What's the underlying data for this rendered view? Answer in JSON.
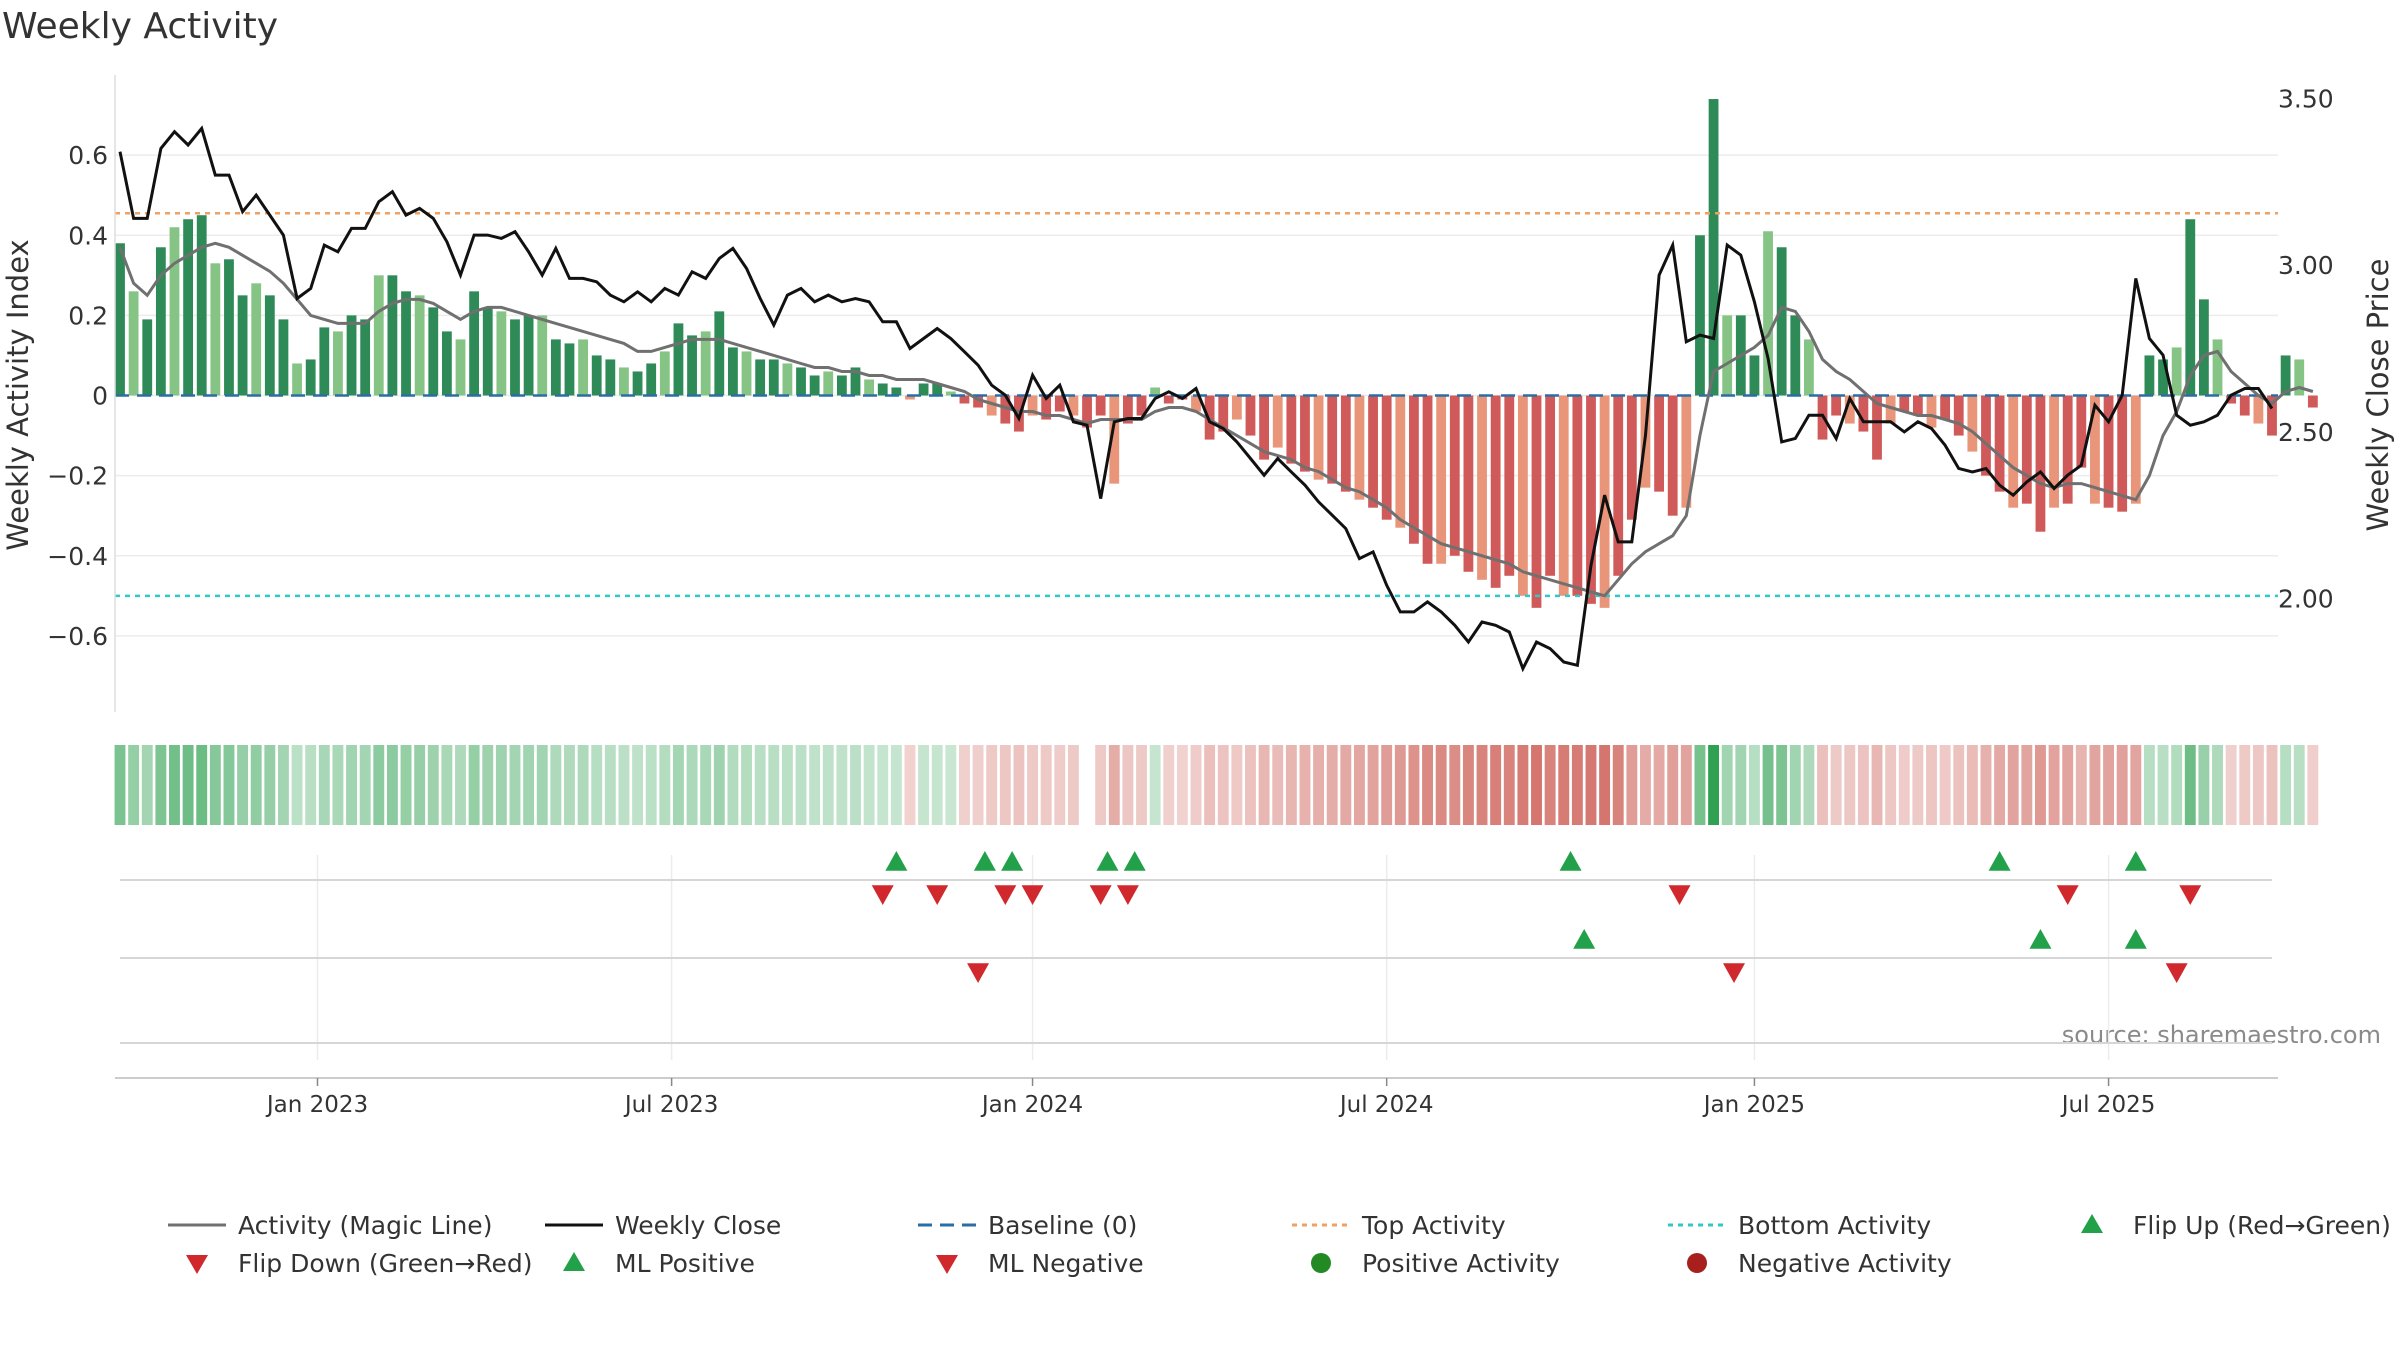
{
  "chart_data": {
    "type": "bar+line",
    "title": "Weekly Activity",
    "ylabel_left": "Weekly Activity Index",
    "ylabel_right": "Weekly Close Price",
    "source": "source: sharemaestro.com",
    "ylim_left": [
      -0.79,
      0.8
    ],
    "yticks_left": [
      "0.6",
      "0.4",
      "0.2",
      "0",
      "−0.2",
      "−0.4",
      "−0.6"
    ],
    "ytick_values_left": [
      0.6,
      0.4,
      0.2,
      0,
      -0.2,
      -0.4,
      -0.6
    ],
    "ylim_right": [
      1.66,
      3.57
    ],
    "yticks_right": [
      "3.50",
      "3.00",
      "2.50",
      "2.00"
    ],
    "ytick_values_right": [
      3.5,
      3.0,
      2.5,
      2.0
    ],
    "x_week_range": [
      0,
      158
    ],
    "x_ticks": [
      {
        "label": "Jan 2023",
        "week": 14.5
      },
      {
        "label": "Jul 2023",
        "week": 40.5
      },
      {
        "label": "Jan 2024",
        "week": 67
      },
      {
        "label": "Jul 2024",
        "week": 93
      },
      {
        "label": "Jan 2025",
        "week": 120
      },
      {
        "label": "Jul 2025",
        "week": 146
      }
    ],
    "top_activity": 0.455,
    "bottom_activity": -0.5,
    "activity": [
      0.38,
      0.26,
      0.19,
      0.37,
      0.42,
      0.44,
      0.45,
      0.33,
      0.34,
      0.25,
      0.28,
      0.25,
      0.19,
      0.08,
      0.09,
      0.17,
      0.16,
      0.2,
      0.19,
      0.3,
      0.3,
      0.26,
      0.25,
      0.22,
      0.16,
      0.14,
      0.26,
      0.22,
      0.21,
      0.19,
      0.2,
      0.2,
      0.14,
      0.13,
      0.14,
      0.1,
      0.09,
      0.07,
      0.06,
      0.08,
      0.11,
      0.18,
      0.15,
      0.16,
      0.21,
      0.12,
      0.11,
      0.09,
      0.09,
      0.08,
      0.07,
      0.05,
      0.06,
      0.05,
      0.07,
      0.04,
      0.03,
      0.02,
      -0.01,
      0.03,
      0.03,
      0.01,
      -0.02,
      -0.03,
      -0.05,
      -0.07,
      -0.09,
      -0.05,
      -0.06,
      -0.04,
      -0.05,
      -0.08,
      -0.05,
      -0.22,
      -0.07,
      -0.05,
      0.02,
      -0.02,
      -0.01,
      -0.04,
      -0.11,
      -0.09,
      -0.06,
      -0.1,
      -0.16,
      -0.13,
      -0.17,
      -0.19,
      -0.21,
      -0.22,
      -0.24,
      -0.26,
      -0.28,
      -0.31,
      -0.33,
      -0.37,
      -0.42,
      -0.42,
      -0.4,
      -0.44,
      -0.46,
      -0.48,
      -0.45,
      -0.5,
      -0.53,
      -0.45,
      -0.5,
      -0.5,
      -0.52,
      -0.53,
      -0.45,
      -0.31,
      -0.23,
      -0.24,
      -0.3,
      -0.28,
      0.4,
      0.74,
      0.2,
      0.2,
      0.1,
      0.41,
      0.37,
      0.2,
      0.14,
      -0.11,
      -0.05,
      -0.07,
      -0.09,
      -0.16,
      -0.07,
      -0.04,
      -0.05,
      -0.08,
      -0.06,
      -0.1,
      -0.14,
      -0.2,
      -0.24,
      -0.28,
      -0.27,
      -0.34,
      -0.28,
      -0.27,
      -0.18,
      -0.27,
      -0.28,
      -0.29,
      -0.27,
      0.1,
      0.09,
      0.12,
      0.44,
      0.24,
      0.14,
      -0.02,
      -0.05,
      -0.07,
      -0.1,
      0.1,
      0.09,
      -0.03
    ],
    "magic_line": [
      0.37,
      0.28,
      0.25,
      0.3,
      0.33,
      0.35,
      0.37,
      0.38,
      0.37,
      0.35,
      0.33,
      0.31,
      0.28,
      0.24,
      0.2,
      0.19,
      0.18,
      0.18,
      0.18,
      0.21,
      0.23,
      0.24,
      0.24,
      0.23,
      0.21,
      0.19,
      0.21,
      0.22,
      0.22,
      0.21,
      0.2,
      0.19,
      0.18,
      0.17,
      0.16,
      0.15,
      0.14,
      0.13,
      0.11,
      0.11,
      0.12,
      0.13,
      0.14,
      0.14,
      0.14,
      0.13,
      0.12,
      0.11,
      0.1,
      0.09,
      0.08,
      0.07,
      0.07,
      0.06,
      0.06,
      0.05,
      0.05,
      0.04,
      0.04,
      0.04,
      0.03,
      0.02,
      0.01,
      -0.01,
      -0.02,
      -0.03,
      -0.04,
      -0.04,
      -0.05,
      -0.05,
      -0.06,
      -0.07,
      -0.06,
      -0.06,
      -0.06,
      -0.06,
      -0.04,
      -0.03,
      -0.03,
      -0.04,
      -0.06,
      -0.08,
      -0.1,
      -0.12,
      -0.14,
      -0.15,
      -0.16,
      -0.18,
      -0.19,
      -0.21,
      -0.23,
      -0.24,
      -0.26,
      -0.28,
      -0.31,
      -0.33,
      -0.35,
      -0.37,
      -0.38,
      -0.39,
      -0.4,
      -0.41,
      -0.42,
      -0.44,
      -0.45,
      -0.46,
      -0.47,
      -0.48,
      -0.49,
      -0.5,
      -0.46,
      -0.42,
      -0.39,
      -0.37,
      -0.35,
      -0.3,
      -0.1,
      0.06,
      0.08,
      0.1,
      0.12,
      0.15,
      0.22,
      0.21,
      0.16,
      0.09,
      0.06,
      0.04,
      0.01,
      -0.02,
      -0.03,
      -0.04,
      -0.05,
      -0.05,
      -0.06,
      -0.07,
      -0.09,
      -0.12,
      -0.15,
      -0.18,
      -0.2,
      -0.22,
      -0.23,
      -0.22,
      -0.22,
      -0.23,
      -0.24,
      -0.25,
      -0.26,
      -0.2,
      -0.1,
      -0.04,
      0.05,
      0.1,
      0.11,
      0.06,
      0.03,
      0,
      -0.02,
      0.01,
      0.02,
      0.01
    ],
    "weekly_close": [
      3.34,
      3.14,
      3.14,
      3.35,
      3.4,
      3.36,
      3.41,
      3.27,
      3.27,
      3.16,
      3.21,
      3.15,
      3.09,
      2.9,
      2.93,
      3.06,
      3.04,
      3.11,
      3.11,
      3.19,
      3.22,
      3.15,
      3.17,
      3.14,
      3.07,
      2.97,
      3.09,
      3.09,
      3.08,
      3.1,
      3.04,
      2.97,
      3.05,
      2.96,
      2.96,
      2.95,
      2.91,
      2.89,
      2.92,
      2.89,
      2.93,
      2.91,
      2.98,
      2.96,
      3.02,
      3.05,
      2.99,
      2.9,
      2.82,
      2.91,
      2.93,
      2.89,
      2.91,
      2.89,
      2.9,
      2.89,
      2.83,
      2.83,
      2.75,
      2.78,
      2.81,
      2.78,
      2.74,
      2.7,
      2.64,
      2.61,
      2.54,
      2.67,
      2.6,
      2.64,
      2.53,
      2.52,
      2.3,
      2.53,
      2.54,
      2.54,
      2.6,
      2.62,
      2.6,
      2.63,
      2.53,
      2.51,
      2.47,
      2.42,
      2.37,
      2.42,
      2.38,
      2.34,
      2.29,
      2.25,
      2.21,
      2.12,
      2.14,
      2.04,
      1.96,
      1.96,
      1.99,
      1.96,
      1.92,
      1.87,
      1.93,
      1.92,
      1.9,
      1.79,
      1.87,
      1.85,
      1.81,
      1.8,
      2.1,
      2.31,
      2.17,
      2.17,
      2.49,
      2.97,
      3.06,
      2.77,
      2.79,
      2.78,
      3.06,
      3.03,
      2.89,
      2.72,
      2.47,
      2.48,
      2.55,
      2.55,
      2.48,
      2.6,
      2.53,
      2.53,
      2.53,
      2.5,
      2.53,
      2.51,
      2.46,
      2.39,
      2.38,
      2.39,
      2.34,
      2.31,
      2.35,
      2.38,
      2.33,
      2.37,
      2.4,
      2.58,
      2.53,
      2.61,
      2.96,
      2.78,
      2.73,
      2.55,
      2.52,
      2.53,
      2.55,
      2.61,
      2.63,
      2.63,
      2.57
    ],
    "strip_colors_note": "Activity strip below the main plot: color intensity encodes activity (green positive, red negative); gap at week 71.",
    "strip_gap_week": 71,
    "flip_up_weeks": [
      57,
      63.5,
      65.5,
      72.5,
      74.5,
      106.5,
      138,
      148
    ],
    "flip_down_weeks": [
      56,
      60,
      65,
      67,
      72,
      74,
      114.5,
      143,
      152
    ],
    "ml_positive_weeks": [
      107.5,
      141,
      148
    ],
    "ml_negative_weeks": [
      63,
      118.5,
      151
    ],
    "legend": [
      {
        "label": "Activity (Magic Line)",
        "marker": "line",
        "color": "#707070"
      },
      {
        "label": "Weekly Close",
        "marker": "line",
        "color": "#111111"
      },
      {
        "label": "Baseline (0)",
        "marker": "dashed",
        "color": "#2b6ea6"
      },
      {
        "label": "Top Activity",
        "marker": "dotted",
        "color": "#f0a060"
      },
      {
        "label": "Bottom Activity",
        "marker": "dotted",
        "color": "#30c8c8"
      },
      {
        "label": "Flip Up (Red→Green)",
        "marker": "triangle-up",
        "color": "#23a04a"
      },
      {
        "label": "Flip Down (Green→Red)",
        "marker": "triangle-down",
        "color": "#d0282c"
      },
      {
        "label": "ML Positive",
        "marker": "triangle-up",
        "color": "#23a04a"
      },
      {
        "label": "ML Negative",
        "marker": "triangle-down",
        "color": "#d0282c"
      },
      {
        "label": "Positive Activity",
        "marker": "circle",
        "color": "#238a23"
      },
      {
        "label": "Negative Activity",
        "marker": "circle",
        "color": "#a8201e"
      }
    ],
    "colors": {
      "pos_strong": "#2e8b57",
      "pos_light": "#86c486",
      "neg_strong": "#d05a5a",
      "neg_light": "#e8957a",
      "flip_up": "#23a04a",
      "flip_down": "#d0282c"
    }
  }
}
